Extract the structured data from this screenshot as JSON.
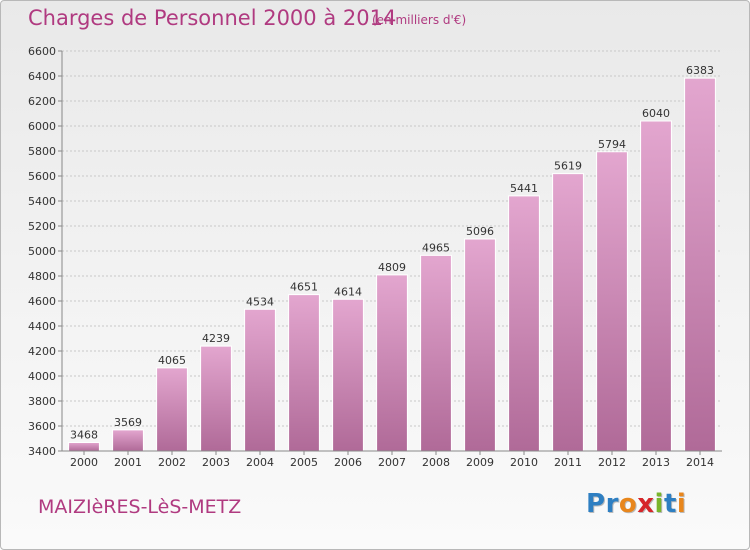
{
  "header": {
    "title": "Charges de Personnel 2000 à 2014",
    "subtitle": "(en milliers d'€)"
  },
  "footer": {
    "commune": "MAIZIèRES-LèS-METZ",
    "logo_letters": [
      {
        "ch": "P",
        "color": "#2e7fc2"
      },
      {
        "ch": "r",
        "color": "#2e7fc2"
      },
      {
        "ch": "o",
        "color": "#e8861c"
      },
      {
        "ch": "x",
        "color": "#d6262a"
      },
      {
        "ch": "i",
        "color": "#7ab52b"
      },
      {
        "ch": "t",
        "color": "#2e7fc2"
      },
      {
        "ch": "i",
        "color": "#e8861c"
      }
    ]
  },
  "colors": {
    "bar_top": "#e3a6cf",
    "bar_bottom": "#b06a98",
    "accent": "#b03a80",
    "grid": "#c8c8c8"
  },
  "chart_data": {
    "type": "bar",
    "title": "Charges de Personnel 2000 à 2014",
    "subtitle": "(en milliers d'€)",
    "categories": [
      "2000",
      "2001",
      "2002",
      "2003",
      "2004",
      "2005",
      "2006",
      "2007",
      "2008",
      "2009",
      "2010",
      "2011",
      "2012",
      "2013",
      "2014"
    ],
    "values": [
      3468,
      3569,
      4065,
      4239,
      4534,
      4651,
      4614,
      4809,
      4965,
      5096,
      5441,
      5619,
      5794,
      6040,
      6383
    ],
    "ylim": [
      3400,
      6600
    ],
    "yticks": [
      3400,
      3600,
      3800,
      4000,
      4200,
      4400,
      4600,
      4800,
      5000,
      5200,
      5400,
      5600,
      5800,
      6000,
      6200,
      6400,
      6600
    ],
    "xlabel": "",
    "ylabel": "",
    "grid": true,
    "data_labels": true
  }
}
